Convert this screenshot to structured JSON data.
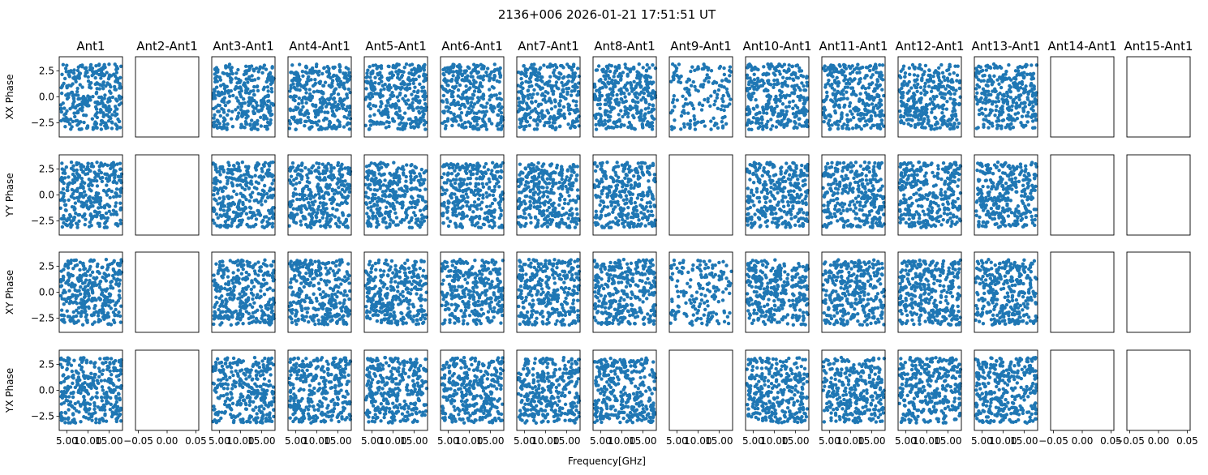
{
  "chart_data": {
    "type": "scatter",
    "title": "2136+006 2026-01-21 17:51:51 UT",
    "xlabel": "Frequency[GHz]",
    "columns": [
      "Ant1",
      "Ant2-Ant1",
      "Ant3-Ant1",
      "Ant4-Ant1",
      "Ant5-Ant1",
      "Ant6-Ant1",
      "Ant7-Ant1",
      "Ant8-Ant1",
      "Ant9-Ant1",
      "Ant10-Ant1",
      "Ant11-Ant1",
      "Ant12-Ant1",
      "Ant13-Ant1",
      "Ant14-Ant1",
      "Ant15-Ant1"
    ],
    "rows": [
      "XX Phase",
      "YY Phase",
      "XY Phase",
      "YX Phase"
    ],
    "series_color": "#1f77b4",
    "ylim": [
      -3.85,
      3.85
    ],
    "yticks": [
      2.5,
      0.0,
      -2.5
    ],
    "ytick_labels": [
      "2.5",
      "0.0",
      "−2.5"
    ],
    "data_xlim": [
      3.2,
      18.2
    ],
    "data_xticks": [
      5.0,
      10.0,
      15.0
    ],
    "data_xtick_labels": [
      "5.00",
      "10.00",
      "15.00"
    ],
    "data_x_range": [
      3.5,
      18.0
    ],
    "data_y_range": [
      -3.14,
      3.14
    ],
    "empty_xlim": [
      -0.055,
      0.055
    ],
    "empty_xticks": [
      -0.05,
      0.0,
      0.05
    ],
    "empty_xtick_labels": [
      "−0.05",
      "0.00",
      "0.05"
    ],
    "tick_label_columns": [
      0,
      1,
      2,
      3,
      4,
      5,
      6,
      7,
      8,
      9,
      10,
      11,
      12,
      13,
      14
    ],
    "panels": [
      [
        {
          "points": 330
        },
        {
          "points": 0
        },
        {
          "points": 330
        },
        {
          "points": 330
        },
        {
          "points": 330
        },
        {
          "points": 330
        },
        {
          "points": 330
        },
        {
          "points": 330
        },
        {
          "points": 170
        },
        {
          "points": 330
        },
        {
          "points": 330
        },
        {
          "points": 330
        },
        {
          "points": 330
        },
        {
          "points": 0
        },
        {
          "points": 0
        }
      ],
      [
        {
          "points": 330
        },
        {
          "points": 0
        },
        {
          "points": 330
        },
        {
          "points": 330
        },
        {
          "points": 330
        },
        {
          "points": 330
        },
        {
          "points": 330
        },
        {
          "points": 330
        },
        {
          "points": 0
        },
        {
          "points": 330
        },
        {
          "points": 330
        },
        {
          "points": 330
        },
        {
          "points": 330
        },
        {
          "points": 0
        },
        {
          "points": 0
        }
      ],
      [
        {
          "points": 330
        },
        {
          "points": 0
        },
        {
          "points": 330
        },
        {
          "points": 330
        },
        {
          "points": 330
        },
        {
          "points": 330
        },
        {
          "points": 330
        },
        {
          "points": 330
        },
        {
          "points": 170
        },
        {
          "points": 330
        },
        {
          "points": 330
        },
        {
          "points": 330
        },
        {
          "points": 330
        },
        {
          "points": 0
        },
        {
          "points": 0
        }
      ],
      [
        {
          "points": 330
        },
        {
          "points": 0
        },
        {
          "points": 330
        },
        {
          "points": 330
        },
        {
          "points": 330
        },
        {
          "points": 330
        },
        {
          "points": 330
        },
        {
          "points": 330
        },
        {
          "points": 0
        },
        {
          "points": 330
        },
        {
          "points": 330
        },
        {
          "points": 330
        },
        {
          "points": 330
        },
        {
          "points": 0
        },
        {
          "points": 0
        }
      ]
    ]
  }
}
